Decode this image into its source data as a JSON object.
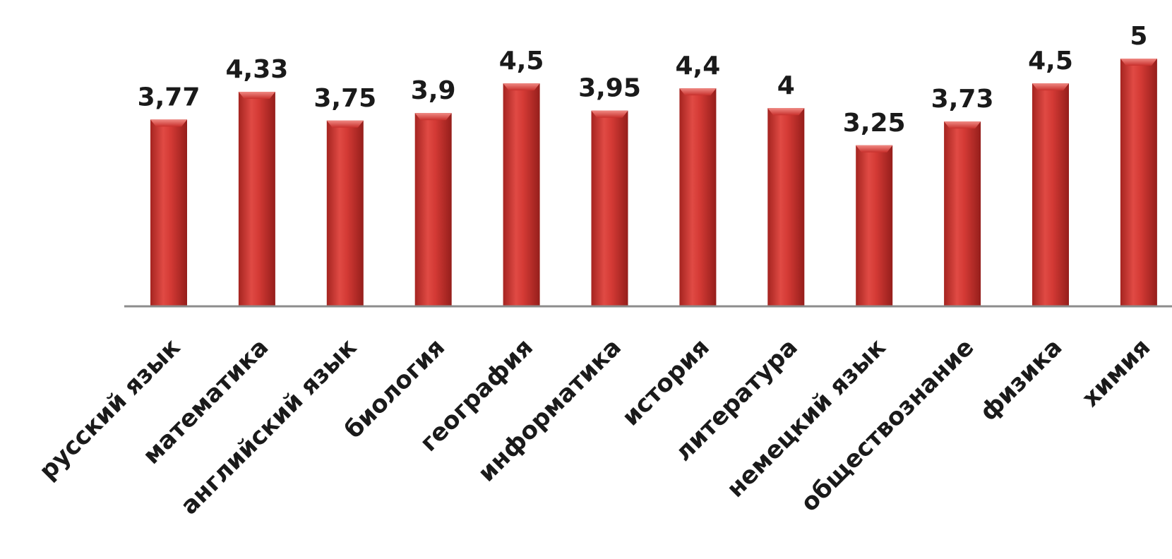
{
  "chart_data": {
    "type": "bar",
    "categories": [
      "русский язык",
      "математика",
      "английский язык",
      "биология",
      "география",
      "информатика",
      "история",
      "литература",
      "немецкий язык",
      "обществознание",
      "физика",
      "химия"
    ],
    "values": [
      3.77,
      4.33,
      3.75,
      3.9,
      4.5,
      3.95,
      4.4,
      4,
      3.25,
      3.73,
      4.5,
      5
    ],
    "value_labels": [
      "3,77",
      "4,33",
      "3,75",
      "3,9",
      "4,5",
      "3,95",
      "4,4",
      "4",
      "3,25",
      "3,73",
      "4,5",
      "5"
    ],
    "ylim": [
      0,
      5
    ],
    "grid": false,
    "legend": "none",
    "colors": {
      "bar": "#c8302c",
      "bar_light": "#e65a53",
      "bar_dark": "#8e1c1a",
      "axis": "#8c8c8c",
      "text": "#1a1a1a"
    }
  }
}
